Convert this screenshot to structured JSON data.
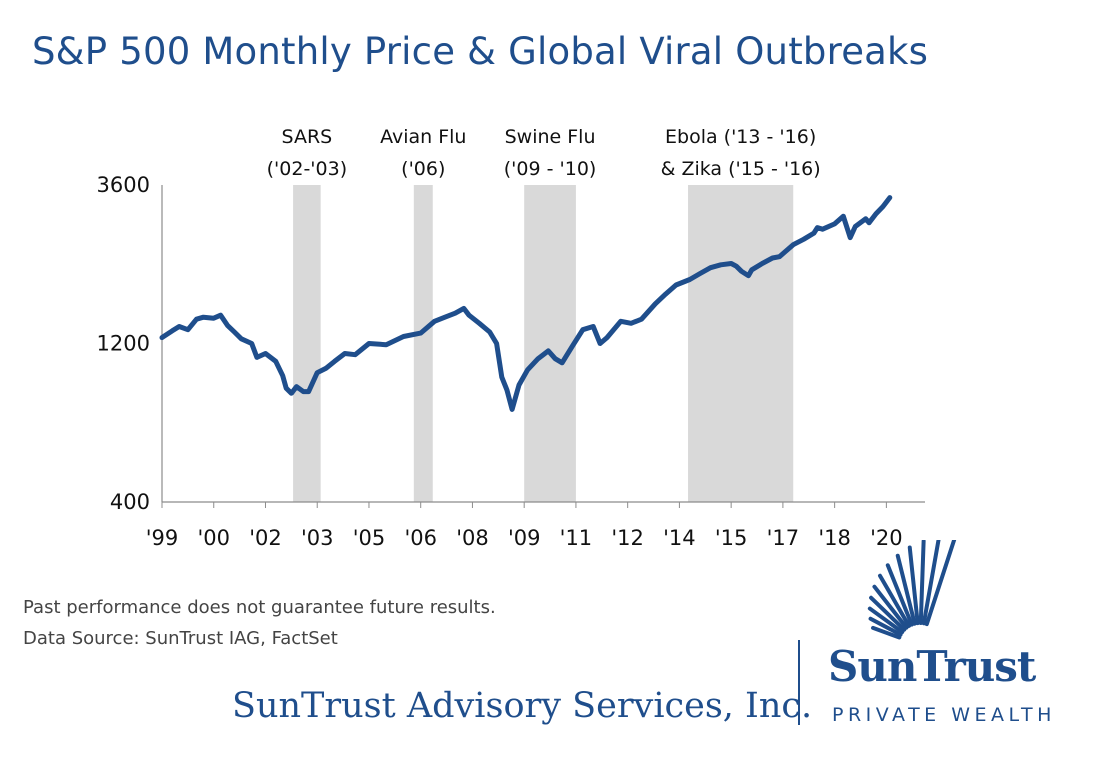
{
  "chart_data": {
    "type": "line",
    "title": "S&P 500 Monthly Price & Global Viral Outbreaks",
    "y_scale": "log",
    "ylim": [
      400,
      3600
    ],
    "y_ticks": [
      3600,
      1200,
      400
    ],
    "xlim": [
      1999.0,
      2020.25
    ],
    "x_ticks": [
      {
        "label": "'99",
        "year": 1999.0
      },
      {
        "label": "'00",
        "year": 2000.5
      },
      {
        "label": "'02",
        "year": 2002.0
      },
      {
        "label": "'03",
        "year": 2003.5
      },
      {
        "label": "'05",
        "year": 2005.0
      },
      {
        "label": "'06",
        "year": 2006.5
      },
      {
        "label": "'08",
        "year": 2008.0
      },
      {
        "label": "'09",
        "year": 2009.5
      },
      {
        "label": "'11",
        "year": 2011.0
      },
      {
        "label": "'12",
        "year": 2012.5
      },
      {
        "label": "'14",
        "year": 2014.0
      },
      {
        "label": "'15",
        "year": 2015.5
      },
      {
        "label": "'17",
        "year": 2017.0
      },
      {
        "label": "'18",
        "year": 2018.5
      },
      {
        "label": "'20",
        "year": 2020.0
      }
    ],
    "outbreaks": [
      {
        "name": "SARS",
        "label_lines": [
          "SARS",
          "('02-'03)"
        ],
        "start": 2002.8,
        "end": 2003.6
      },
      {
        "name": "Avian Flu",
        "label_lines": [
          "Avian Flu",
          "('06)"
        ],
        "start": 2006.3,
        "end": 2006.85
      },
      {
        "name": "Swine Flu",
        "label_lines": [
          "Swine Flu",
          "('09 - '10)"
        ],
        "start": 2009.5,
        "end": 2011.0
      },
      {
        "name": "Ebola & Zika",
        "label_lines": [
          "Ebola ('13 - '16)",
          "& Zika ('15 - '16)"
        ],
        "start": 2014.25,
        "end": 2017.3
      }
    ],
    "series": [
      {
        "name": "S&P 500 Monthly Price",
        "color": "#1f4e8c",
        "x": [
          1999.0,
          1999.3,
          1999.5,
          1999.75,
          2000.0,
          2000.2,
          2000.5,
          2000.7,
          2000.9,
          2001.1,
          2001.3,
          2001.6,
          2001.75,
          2002.0,
          2002.3,
          2002.5,
          2002.6,
          2002.75,
          2002.9,
          2003.1,
          2003.25,
          2003.5,
          2003.75,
          2004.0,
          2004.3,
          2004.6,
          2005.0,
          2005.5,
          2006.0,
          2006.5,
          2006.9,
          2007.2,
          2007.5,
          2007.75,
          2007.9,
          2008.2,
          2008.5,
          2008.7,
          2008.85,
          2009.0,
          2009.15,
          2009.35,
          2009.6,
          2009.9,
          2010.2,
          2010.4,
          2010.6,
          2010.9,
          2011.2,
          2011.5,
          2011.7,
          2011.9,
          2012.3,
          2012.6,
          2012.9,
          2013.3,
          2013.6,
          2013.9,
          2014.3,
          2014.6,
          2014.9,
          2015.2,
          2015.5,
          2015.65,
          2015.8,
          2016.0,
          2016.1,
          2016.4,
          2016.7,
          2016.9,
          2017.3,
          2017.6,
          2017.9,
          2018.0,
          2018.15,
          2018.5,
          2018.75,
          2018.95,
          2019.1,
          2019.4,
          2019.5,
          2019.7,
          2019.9,
          2020.1
        ],
        "values": [
          1250,
          1310,
          1350,
          1320,
          1420,
          1440,
          1430,
          1460,
          1360,
          1300,
          1240,
          1200,
          1090,
          1120,
          1060,
          960,
          880,
          850,
          890,
          860,
          860,
          980,
          1010,
          1060,
          1120,
          1110,
          1200,
          1190,
          1260,
          1290,
          1400,
          1440,
          1480,
          1530,
          1460,
          1380,
          1300,
          1200,
          950,
          870,
          760,
          900,
          1000,
          1080,
          1140,
          1080,
          1050,
          1180,
          1320,
          1350,
          1200,
          1250,
          1400,
          1380,
          1420,
          1580,
          1690,
          1800,
          1870,
          1950,
          2030,
          2070,
          2090,
          2050,
          1980,
          1920,
          2000,
          2090,
          2170,
          2190,
          2380,
          2470,
          2580,
          2680,
          2650,
          2750,
          2900,
          2500,
          2700,
          2850,
          2770,
          2950,
          3100,
          3300
        ]
      }
    ]
  },
  "footnotes": {
    "line1": "Past performance does not guarantee future results.",
    "line2": "Data Source: SunTrust IAG, FactSet"
  },
  "branding": {
    "company": "SunTrust Advisory Services, Inc.",
    "logo_name": "SunTrust",
    "logo_sub": "PRIVATE WEALTH",
    "brand_color": "#1f4e8c"
  }
}
